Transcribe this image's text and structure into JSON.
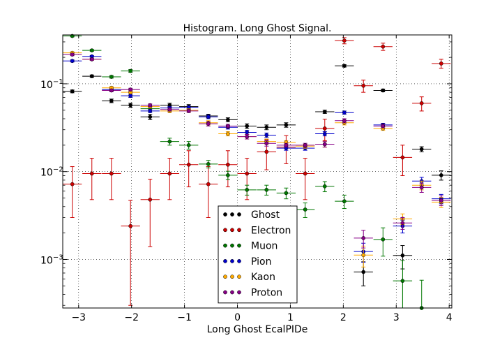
{
  "chart_data": {
    "type": "scatter",
    "title": "Histogram. Long Ghost Signal.",
    "xlabel": "Long Ghost EcalPIDe",
    "ylabel": "",
    "xlim": [
      -3.3,
      4.05
    ],
    "ylim": [
      0.00028,
      0.36
    ],
    "yscale": "log",
    "grid": true,
    "legend_position": "lower-center",
    "x_ticks": [
      {
        "v": -3,
        "label": "−3"
      },
      {
        "v": -2,
        "label": "−2"
      },
      {
        "v": -1,
        "label": "−1"
      },
      {
        "v": 0,
        "label": "0"
      },
      {
        "v": 1,
        "label": "1"
      },
      {
        "v": 2,
        "label": "2"
      },
      {
        "v": 3,
        "label": "3"
      },
      {
        "v": 4,
        "label": "4"
      }
    ],
    "y_ticks": [
      {
        "v": 0.001,
        "base": "10",
        "exp": "−3"
      },
      {
        "v": 0.01,
        "base": "10",
        "exp": "−2"
      },
      {
        "v": 0.1,
        "base": "10",
        "exp": "−1"
      }
    ],
    "bin_half_width": 0.18,
    "x": [
      -3.12,
      -2.75,
      -2.38,
      -2.02,
      -1.65,
      -1.28,
      -0.92,
      -0.55,
      -0.18,
      0.18,
      0.55,
      0.92,
      1.28,
      1.65,
      2.02,
      2.38,
      2.75,
      3.12,
      3.48,
      3.85
    ],
    "series": [
      {
        "name": "Ghost",
        "color": "#000000",
        "values": [
          0.082,
          0.122,
          0.064,
          0.057,
          0.042,
          0.057,
          0.055,
          0.043,
          0.039,
          0.033,
          0.032,
          0.034,
          null,
          0.048,
          0.16,
          0.00072,
          0.084,
          0.00111,
          0.018,
          0.0091
        ],
        "err_lo": [
          0.003,
          0.004,
          0.003,
          0.003,
          0.003,
          0.003,
          0.003,
          0.002,
          0.002,
          0.002,
          0.002,
          0.002,
          null,
          0.002,
          0.005,
          0.00022,
          0.003,
          0.00033,
          0.0012,
          0.0011
        ],
        "err_hi": [
          0.003,
          0.004,
          0.003,
          0.003,
          0.003,
          0.003,
          0.003,
          0.002,
          0.002,
          0.002,
          0.002,
          0.002,
          null,
          0.002,
          0.005,
          0.00022,
          0.003,
          0.00033,
          0.0012,
          0.0011
        ]
      },
      {
        "name": "Electron",
        "color": "#cc0000",
        "values": [
          0.0072,
          0.0095,
          0.0095,
          0.0024,
          0.0048,
          0.0095,
          0.012,
          0.0072,
          0.012,
          0.0095,
          0.0168,
          0.019,
          0.0095,
          0.031,
          0.31,
          0.095,
          0.265,
          0.0145,
          0.06,
          0.17
        ],
        "err_lo": [
          0.0042,
          0.0047,
          0.0047,
          0.0021,
          0.0034,
          0.0047,
          0.0053,
          0.0042,
          0.0053,
          0.0047,
          0.0063,
          0.0067,
          0.0047,
          0.0085,
          0.025,
          0.015,
          0.025,
          0.0055,
          0.011,
          0.02
        ],
        "err_hi": [
          0.0042,
          0.0047,
          0.0047,
          0.0023,
          0.0034,
          0.0047,
          0.0053,
          0.0042,
          0.0053,
          0.0047,
          0.0063,
          0.0067,
          0.0047,
          0.0085,
          0.025,
          0.015,
          0.025,
          0.0055,
          0.011,
          0.02
        ]
      },
      {
        "name": "Muon",
        "color": "#007700",
        "values": [
          0.35,
          0.24,
          0.12,
          0.14,
          0.052,
          0.022,
          0.02,
          0.0122,
          0.0091,
          0.0062,
          0.0062,
          0.0057,
          0.0037,
          0.0068,
          0.0046,
          null,
          0.00169,
          0.00057,
          0.00028,
          null
        ],
        "err_lo": [
          0.008,
          0.006,
          0.004,
          0.005,
          0.003,
          0.002,
          0.002,
          0.0012,
          0.001,
          0.0008,
          0.0008,
          0.0008,
          0.0007,
          0.0009,
          0.0008,
          null,
          0.0006,
          0.0004,
          0.0002,
          null
        ],
        "err_hi": [
          0.008,
          0.006,
          0.004,
          0.005,
          0.003,
          0.002,
          0.002,
          0.0012,
          0.001,
          0.0008,
          0.0008,
          0.0008,
          0.0007,
          0.0009,
          0.0008,
          null,
          0.0006,
          0.0004,
          0.0003,
          null
        ]
      },
      {
        "name": "Pion",
        "color": "#0000cc",
        "values": [
          0.182,
          0.205,
          0.086,
          0.073,
          0.049,
          0.053,
          0.054,
          0.042,
          0.032,
          0.028,
          0.026,
          0.0185,
          0.0185,
          0.027,
          0.047,
          0.00123,
          0.034,
          0.0024,
          0.0078,
          0.0049
        ],
        "err_lo": [
          0.005,
          0.005,
          0.003,
          0.003,
          0.002,
          0.002,
          0.002,
          0.002,
          0.0015,
          0.0015,
          0.0015,
          0.001,
          0.001,
          0.0015,
          0.002,
          0.0003,
          0.0015,
          0.0004,
          0.0008,
          0.0006
        ],
        "err_hi": [
          0.005,
          0.005,
          0.003,
          0.003,
          0.002,
          0.002,
          0.002,
          0.002,
          0.0015,
          0.0015,
          0.0015,
          0.001,
          0.001,
          0.0015,
          0.002,
          0.0003,
          0.0015,
          0.0004,
          0.0008,
          0.0006
        ]
      },
      {
        "name": "Kaon",
        "color": "#ffaa00",
        "values": [
          0.225,
          0.19,
          0.09,
          0.08,
          0.055,
          0.049,
          0.05,
          0.036,
          0.027,
          0.025,
          0.022,
          0.0215,
          0.0195,
          0.0205,
          0.036,
          0.00112,
          0.031,
          0.0029,
          0.007,
          0.0045
        ],
        "err_lo": [
          0.006,
          0.005,
          0.003,
          0.003,
          0.002,
          0.002,
          0.002,
          0.002,
          0.0015,
          0.0015,
          0.0015,
          0.001,
          0.001,
          0.0015,
          0.002,
          0.0003,
          0.0015,
          0.0004,
          0.0008,
          0.0006
        ],
        "err_hi": [
          0.006,
          0.005,
          0.003,
          0.003,
          0.002,
          0.002,
          0.002,
          0.002,
          0.0015,
          0.0015,
          0.0015,
          0.001,
          0.001,
          0.0015,
          0.002,
          0.0003,
          0.0015,
          0.0004,
          0.0008,
          0.0006
        ]
      },
      {
        "name": "Proton",
        "color": "#880088",
        "values": [
          0.215,
          0.19,
          0.084,
          0.086,
          0.057,
          0.051,
          0.049,
          0.035,
          0.033,
          0.025,
          0.021,
          0.02,
          0.02,
          0.0205,
          0.038,
          0.00175,
          0.033,
          0.0026,
          0.0066,
          0.0047
        ],
        "err_lo": [
          0.006,
          0.005,
          0.003,
          0.003,
          0.002,
          0.002,
          0.002,
          0.002,
          0.0015,
          0.0015,
          0.0015,
          0.001,
          0.001,
          0.0015,
          0.002,
          0.0004,
          0.0015,
          0.0004,
          0.0008,
          0.0006
        ],
        "err_hi": [
          0.006,
          0.005,
          0.003,
          0.003,
          0.002,
          0.002,
          0.002,
          0.002,
          0.0015,
          0.0015,
          0.0015,
          0.001,
          0.001,
          0.0015,
          0.002,
          0.0004,
          0.0015,
          0.0004,
          0.0008,
          0.0006
        ]
      }
    ]
  }
}
